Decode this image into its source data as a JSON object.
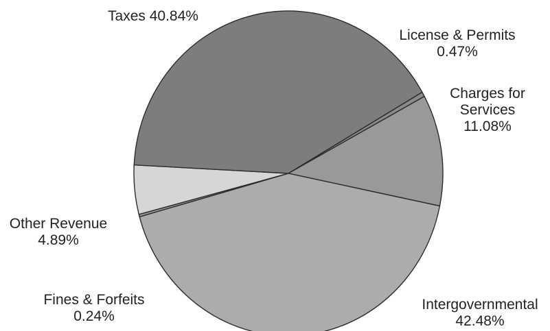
{
  "chart_data": {
    "type": "pie",
    "title": "",
    "slices": [
      {
        "label": "License & Permits",
        "label_lines": [
          "License & Permits",
          "0.47%"
        ],
        "value": 0.47,
        "color": "#8a8a8a"
      },
      {
        "label": "Charges for Services",
        "label_lines": [
          "Charges for",
          "Services",
          "11.08%"
        ],
        "value": 11.08,
        "color": "#999999"
      },
      {
        "label": "Intergovernmental",
        "label_lines": [
          "Intergovernmental",
          "42.48%"
        ],
        "value": 42.48,
        "color": "#acacac"
      },
      {
        "label": "Fines & Forfeits",
        "label_lines": [
          "Fines & Forfeits",
          "0.24%"
        ],
        "value": 0.24,
        "color": "#9a9a9a"
      },
      {
        "label": "Other Revenue",
        "label_lines": [
          "Other Revenue",
          "4.89%"
        ],
        "value": 4.89,
        "color": "#d6d6d6"
      },
      {
        "label": "Taxes",
        "label_lines": [
          "Taxes 40.84%"
        ],
        "value": 40.84,
        "color": "#7d7d7d"
      }
    ]
  }
}
